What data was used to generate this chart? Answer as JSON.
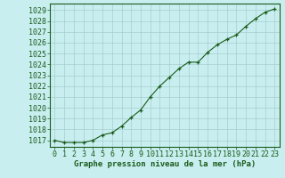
{
  "x": [
    0,
    1,
    2,
    3,
    4,
    5,
    6,
    7,
    8,
    9,
    10,
    11,
    12,
    13,
    14,
    15,
    16,
    17,
    18,
    19,
    20,
    21,
    22,
    23
  ],
  "y": [
    1017.0,
    1016.8,
    1016.8,
    1016.8,
    1017.0,
    1017.5,
    1017.7,
    1018.3,
    1019.1,
    1019.8,
    1021.0,
    1022.0,
    1022.8,
    1023.6,
    1024.2,
    1024.2,
    1025.1,
    1025.8,
    1026.3,
    1026.7,
    1027.5,
    1028.2,
    1028.8,
    1029.1
  ],
  "line_color": "#1a5c1a",
  "marker": "+",
  "bg_color": "#c8eef0",
  "grid_color": "#a0c8c8",
  "ylabel_ticks": [
    1017,
    1018,
    1019,
    1020,
    1021,
    1022,
    1023,
    1024,
    1025,
    1026,
    1027,
    1028,
    1029
  ],
  "ylim": [
    1016.4,
    1029.6
  ],
  "xlim": [
    -0.5,
    23.5
  ],
  "xlabel_text": "Graphe pression niveau de la mer (hPa)",
  "xlabel_color": "#1a5c1a",
  "tick_color": "#1a5c1a",
  "label_fontsize": 6,
  "xlabel_fontsize": 6.5,
  "marker_size": 3.5,
  "line_width": 0.8
}
